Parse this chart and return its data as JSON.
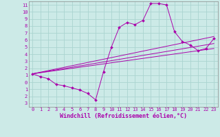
{
  "background_color": "#cceae7",
  "grid_color": "#aad4d0",
  "line_color": "#aa00aa",
  "xlim": [
    -0.5,
    23.5
  ],
  "ylim": [
    -3.5,
    11.5
  ],
  "xticks": [
    0,
    1,
    2,
    3,
    4,
    5,
    6,
    7,
    8,
    9,
    10,
    11,
    12,
    13,
    14,
    15,
    16,
    17,
    18,
    19,
    20,
    21,
    22,
    23
  ],
  "yticks": [
    -3,
    -2,
    -1,
    0,
    1,
    2,
    3,
    4,
    5,
    6,
    7,
    8,
    9,
    10,
    11
  ],
  "xlabel": "Windchill (Refroidissement éolien,°C)",
  "line1_x": [
    0,
    1,
    2,
    3,
    4,
    5,
    6,
    7,
    8,
    9,
    10,
    11,
    12,
    13,
    14,
    15,
    16,
    17,
    18,
    19,
    20,
    21,
    22,
    23
  ],
  "line1_y": [
    1.2,
    0.8,
    0.5,
    -0.3,
    -0.5,
    -0.8,
    -1.1,
    -1.6,
    -2.5,
    1.5,
    5.0,
    7.8,
    8.5,
    8.2,
    8.8,
    11.2,
    11.2,
    11.0,
    7.2,
    5.8,
    5.3,
    4.5,
    4.8,
    6.2
  ],
  "line2_x": [
    0,
    23
  ],
  "line2_y": [
    1.2,
    6.5
  ],
  "line3_x": [
    0,
    23
  ],
  "line3_y": [
    1.2,
    5.5
  ],
  "line4_x": [
    0,
    23
  ],
  "line4_y": [
    1.2,
    4.8
  ],
  "tick_fontsize": 5.0,
  "label_fontsize": 6.0
}
